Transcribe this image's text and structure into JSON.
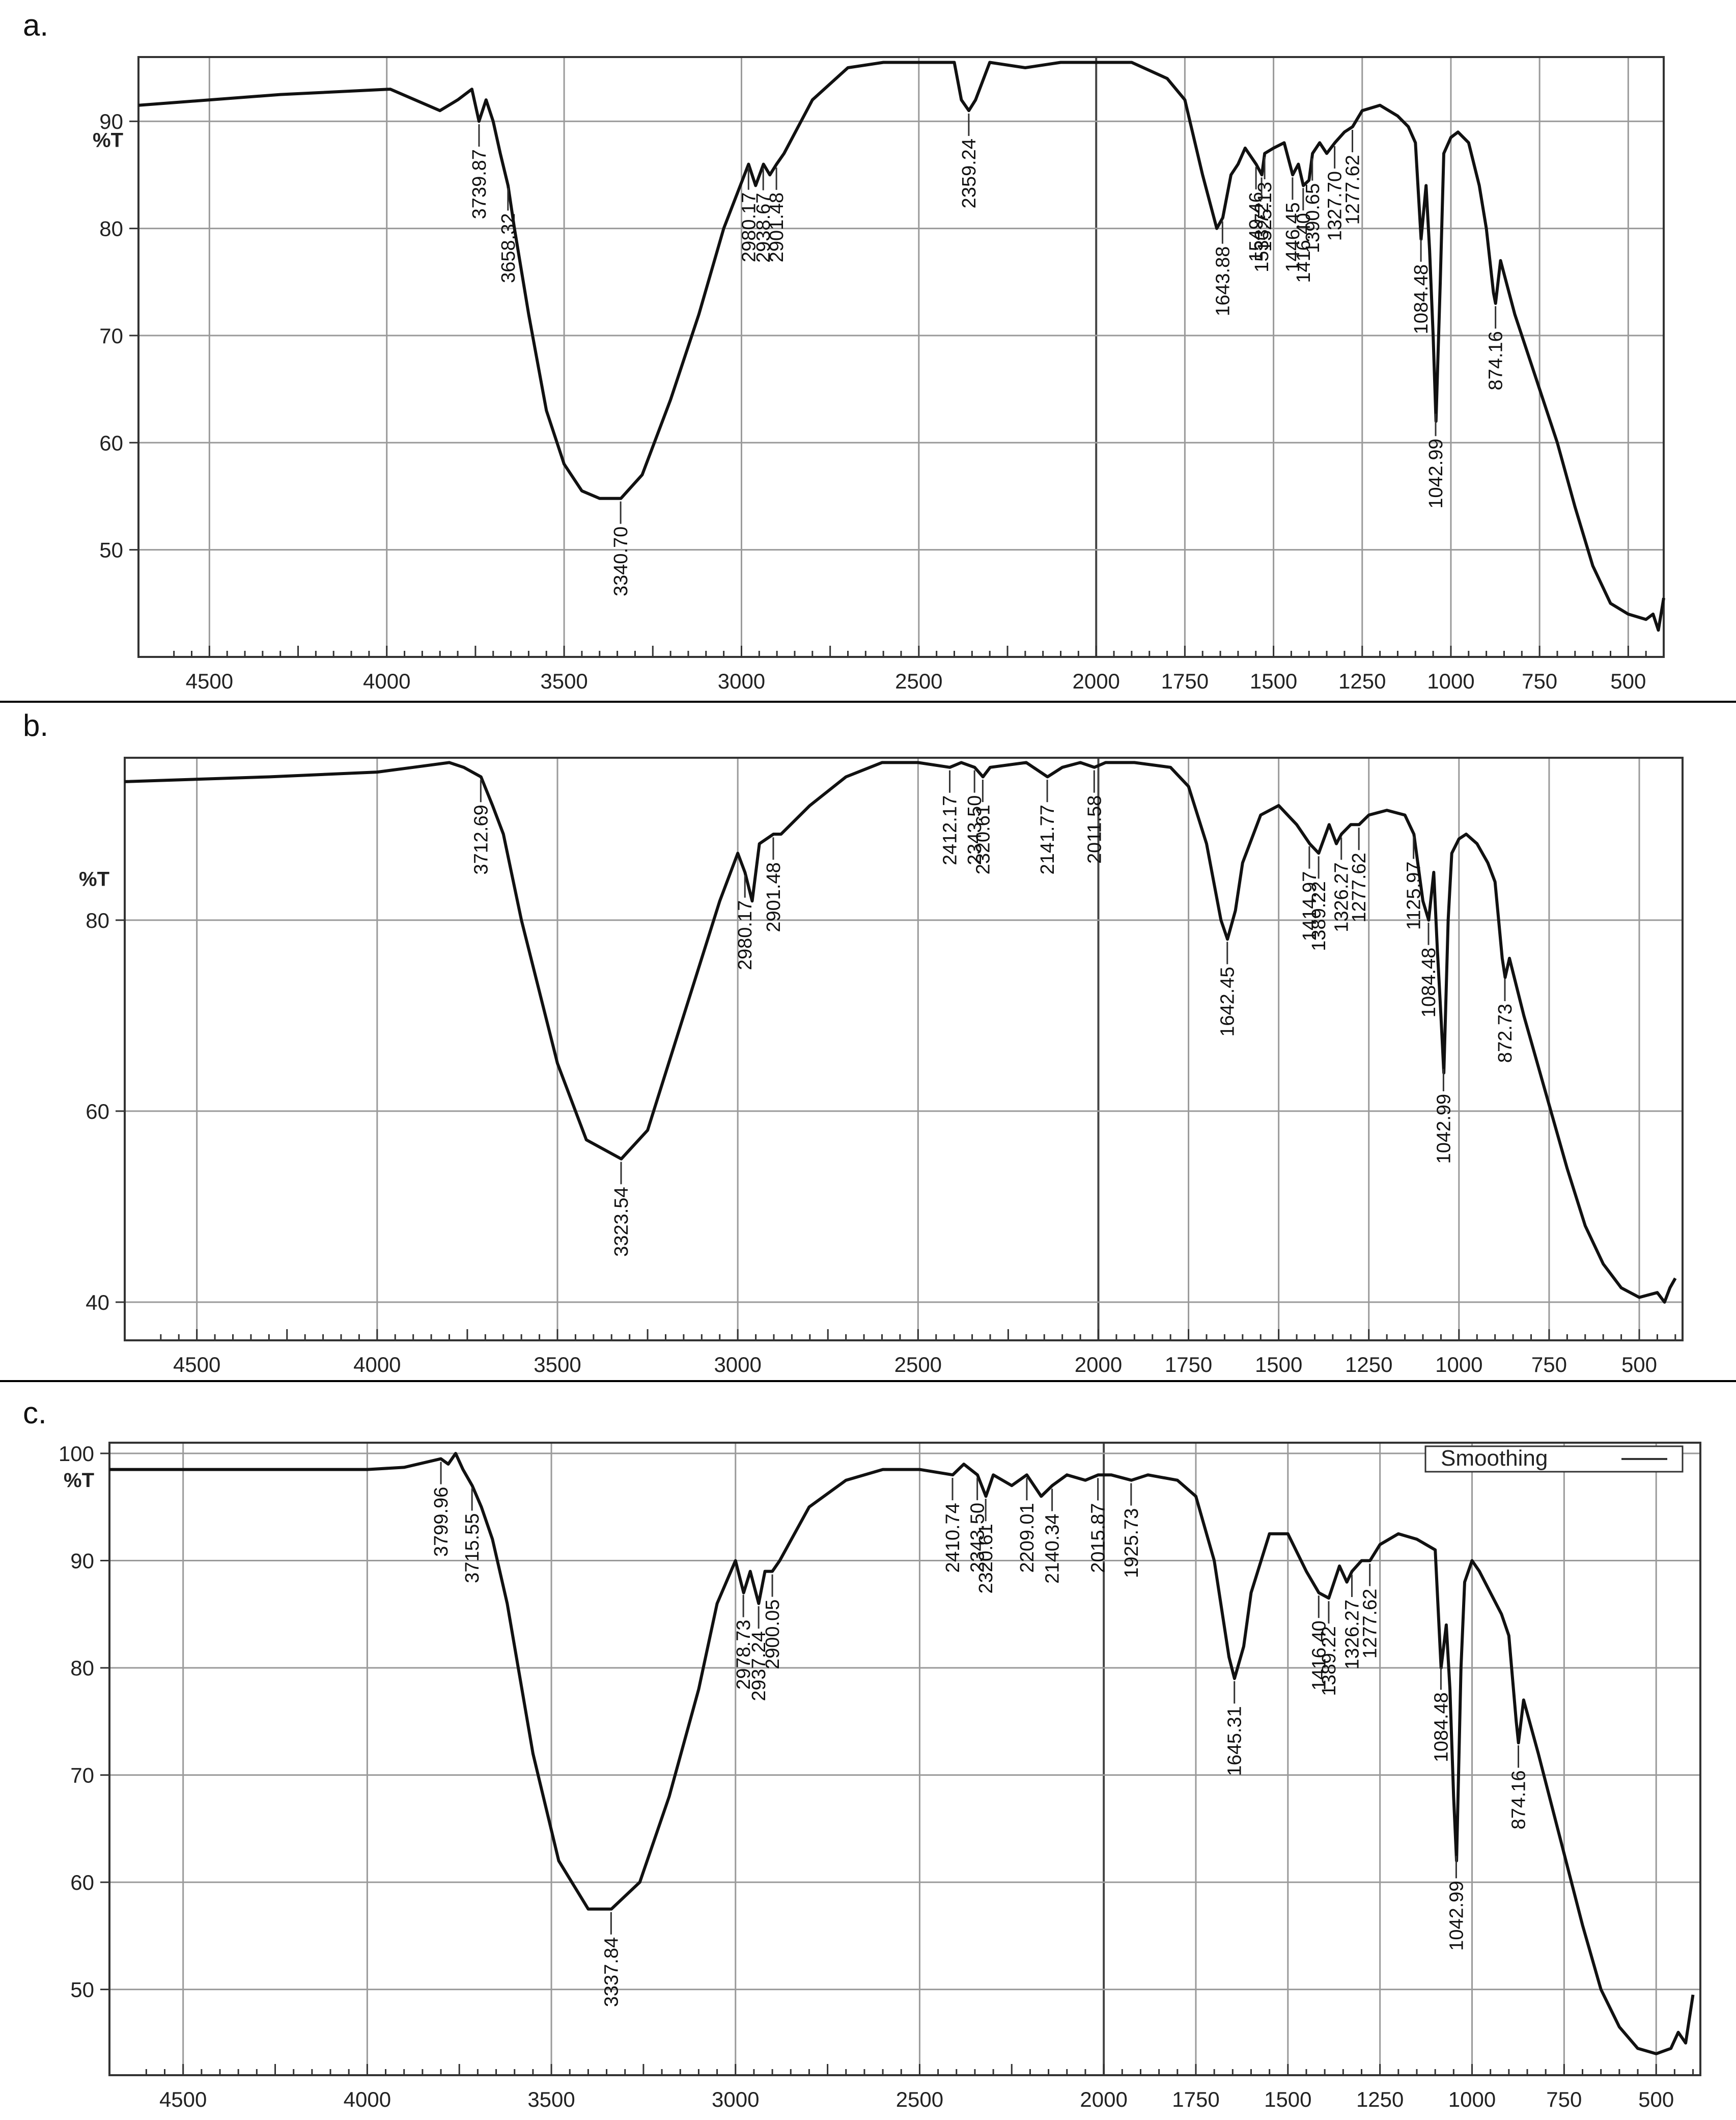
{
  "chart_data": [
    {
      "panel": "a.",
      "type": "line",
      "y_unit_label": "%T",
      "x_ticks": [
        4500,
        4000,
        3500,
        3000,
        2500,
        2000,
        1750,
        1500,
        1250,
        1000,
        750,
        500
      ],
      "y_ticks": [
        90,
        80,
        70,
        60,
        50
      ],
      "x_range": [
        4700,
        400
      ],
      "ylim": [
        40,
        96
      ],
      "grid": true,
      "legend": null,
      "x": [
        4700,
        4300,
        3990,
        3850,
        3800,
        3760,
        3740,
        3720,
        3700,
        3680,
        3658,
        3640,
        3600,
        3550,
        3500,
        3450,
        3400,
        3340,
        3280,
        3200,
        3120,
        3050,
        2980,
        2960,
        2938,
        2920,
        2901,
        2880,
        2800,
        2700,
        2600,
        2400,
        2380,
        2359,
        2340,
        2300,
        2200,
        2100,
        2000,
        1900,
        1800,
        1750,
        1700,
        1660,
        1643,
        1620,
        1600,
        1580,
        1549,
        1533,
        1525,
        1500,
        1470,
        1446,
        1430,
        1416,
        1400,
        1390,
        1370,
        1350,
        1327,
        1300,
        1277,
        1250,
        1200,
        1150,
        1120,
        1100,
        1084,
        1070,
        1060,
        1050,
        1042,
        1030,
        1020,
        1000,
        980,
        950,
        920,
        900,
        880,
        874,
        860,
        820,
        760,
        700,
        650,
        600,
        550,
        500,
        450,
        430,
        415,
        400
      ],
      "y": [
        91.5,
        92.5,
        93,
        91,
        92,
        93,
        90,
        92,
        90,
        87,
        84,
        80,
        72,
        63,
        58,
        55.5,
        54.8,
        54.8,
        57,
        64,
        72,
        80,
        86,
        84,
        86,
        85,
        86,
        87,
        92,
        95,
        95.5,
        95.5,
        92,
        91,
        92,
        95.5,
        95,
        95.5,
        95.5,
        95.5,
        94,
        92,
        85,
        80,
        81,
        85,
        86,
        87.5,
        86,
        85,
        87,
        87.5,
        88,
        85,
        86,
        84,
        84.5,
        87,
        88,
        87,
        88,
        89,
        89.5,
        91,
        91.5,
        90.5,
        89.5,
        88,
        79,
        84,
        78,
        70,
        62,
        75,
        87,
        88.5,
        89,
        88,
        84,
        80,
        74,
        73,
        77,
        72,
        66,
        60,
        54,
        48.5,
        45,
        44,
        43.5,
        44,
        42.5,
        45.5
      ],
      "peak_labels": [
        "3739.87",
        "3658.32",
        "3340.70",
        "2980.17",
        "2938.67",
        "2901.48",
        "2359.24",
        "1643.88",
        "1549.46",
        "1533.72",
        "1525.13",
        "1446.45",
        "1416.40",
        "1390.65",
        "1327.70",
        "1277.62",
        "1084.48",
        "1042.99",
        "874.16"
      ]
    },
    {
      "panel": "b.",
      "type": "line",
      "y_unit_label": "%T",
      "x_ticks": [
        4500,
        4000,
        3500,
        3000,
        2500,
        2000,
        1750,
        1500,
        1250,
        1000,
        750,
        500
      ],
      "y_ticks": [
        80,
        60,
        40
      ],
      "x_range": [
        4700,
        380
      ],
      "ylim": [
        36,
        97
      ],
      "grid": true,
      "legend": null,
      "x": [
        4700,
        4300,
        4000,
        3900,
        3800,
        3760,
        3712,
        3680,
        3650,
        3600,
        3500,
        3420,
        3323,
        3250,
        3150,
        3050,
        3000,
        2980,
        2960,
        2940,
        2901,
        2880,
        2800,
        2700,
        2600,
        2500,
        2412,
        2380,
        2343,
        2320,
        2300,
        2200,
        2141,
        2100,
        2050,
        2011,
        1980,
        1900,
        1800,
        1750,
        1700,
        1660,
        1642,
        1620,
        1600,
        1550,
        1500,
        1450,
        1414,
        1389,
        1360,
        1340,
        1326,
        1300,
        1277,
        1250,
        1200,
        1150,
        1125,
        1100,
        1084,
        1070,
        1060,
        1050,
        1042,
        1030,
        1020,
        1000,
        980,
        950,
        920,
        900,
        880,
        872,
        860,
        820,
        760,
        700,
        650,
        600,
        550,
        500,
        450,
        430,
        415,
        400
      ],
      "y": [
        94.5,
        95,
        95.5,
        96,
        96.5,
        96,
        95,
        92,
        89,
        80,
        65,
        57,
        55,
        58,
        70,
        82,
        87,
        85,
        82,
        88,
        89,
        89,
        92,
        95,
        96.5,
        96.5,
        96,
        96.5,
        96,
        95,
        96,
        96.5,
        95,
        96,
        96.5,
        96,
        96.5,
        96.5,
        96,
        94,
        88,
        80,
        78,
        81,
        86,
        91,
        92,
        90,
        88,
        87,
        90,
        88,
        89,
        90,
        90,
        91,
        91.5,
        91,
        89,
        82,
        80,
        85,
        77,
        70,
        64,
        80,
        87,
        88.5,
        89,
        88,
        86,
        84,
        76,
        74,
        76,
        70,
        62,
        54,
        48,
        44,
        41.5,
        40.5,
        41,
        40,
        41.5,
        42.5
      ],
      "peak_labels": [
        "3712.69",
        "3323.54",
        "2980.17",
        "2901.48",
        "2412.17",
        "2343.50",
        "2320.61",
        "2141.77",
        "2011.58",
        "1642.45",
        "1414.97",
        "1389.22",
        "1326.27",
        "1277.62",
        "1125.97",
        "1084.48",
        "1042.99",
        "872.73"
      ]
    },
    {
      "panel": "c.",
      "type": "line",
      "y_unit_label": "%T",
      "x_ticks": [
        4500,
        4000,
        3500,
        3000,
        2500,
        2000,
        1750,
        1500,
        1250,
        1000,
        750,
        500
      ],
      "y_ticks": [
        100,
        90,
        80,
        70,
        60,
        50
      ],
      "x_range": [
        4700,
        380
      ],
      "ylim": [
        42,
        101
      ],
      "grid": true,
      "legend": {
        "position": "top-right",
        "entries": [
          "Smoothing"
        ]
      },
      "x": [
        4700,
        4300,
        4000,
        3900,
        3800,
        3780,
        3760,
        3740,
        3715,
        3690,
        3660,
        3620,
        3550,
        3480,
        3400,
        3337,
        3260,
        3180,
        3100,
        3050,
        3000,
        2978,
        2960,
        2937,
        2920,
        2900,
        2880,
        2800,
        2700,
        2600,
        2500,
        2410,
        2380,
        2343,
        2320,
        2300,
        2250,
        2209,
        2170,
        2140,
        2100,
        2050,
        2015,
        1980,
        1925,
        1880,
        1800,
        1750,
        1700,
        1660,
        1645,
        1620,
        1600,
        1550,
        1500,
        1450,
        1416,
        1389,
        1360,
        1340,
        1326,
        1300,
        1277,
        1250,
        1200,
        1150,
        1100,
        1084,
        1070,
        1060,
        1050,
        1042,
        1030,
        1020,
        1000,
        980,
        950,
        920,
        900,
        880,
        874,
        860,
        820,
        760,
        700,
        650,
        600,
        550,
        500,
        460,
        440,
        420,
        400
      ],
      "y": [
        98.5,
        98.5,
        98.5,
        98.7,
        99.5,
        99,
        100,
        98.5,
        97,
        95,
        92,
        86,
        72,
        62,
        57.5,
        57.5,
        60,
        68,
        78,
        86,
        90,
        87,
        89,
        86,
        89,
        89,
        90,
        95,
        97.5,
        98.5,
        98.5,
        98,
        99,
        98,
        96,
        98,
        97,
        98,
        96,
        97,
        98,
        97.5,
        98,
        98,
        97.5,
        98,
        97.5,
        96,
        90,
        81,
        79,
        82,
        87,
        92.5,
        92.5,
        89,
        87,
        86.5,
        89.5,
        88,
        89,
        90,
        90,
        91.5,
        92.5,
        92,
        91,
        80,
        84,
        78,
        68,
        62,
        80,
        88,
        90,
        89,
        87,
        85,
        83,
        75,
        73,
        77,
        72,
        64,
        56,
        50,
        46.5,
        44.5,
        44,
        44.5,
        46,
        45,
        49.5
      ],
      "peak_labels": [
        "3799.96",
        "3715.55",
        "3337.84",
        "2978.73",
        "2937.24",
        "2900.05",
        "2410.74",
        "2343.50",
        "2320.61",
        "2209.01",
        "2140.34",
        "2015.87",
        "1925.73",
        "1645.31",
        "1416.40",
        "1389.22",
        "1326.27",
        "1277.62",
        "1084.48",
        "1042.99",
        "874.16"
      ]
    }
  ]
}
